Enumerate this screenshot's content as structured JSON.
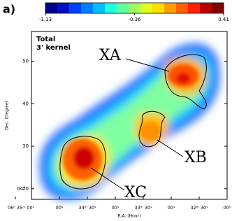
{
  "chart_data": {
    "type": "map",
    "panel_label": "a)",
    "legend_lines": [
      "Total",
      "3' kernel"
    ],
    "annotations": [
      "XA",
      "XB",
      "XC"
    ],
    "x_label": "R.A. (Hour)",
    "y_label": "Dec. (Degree)",
    "y_unit_label": "04°",
    "xtick_labels": [
      "06ʰ 35ᵐ 00ˢ",
      "00ˢ",
      "34ᵐ 30ˢ",
      "00ˢ",
      "33ᵐ 30ˢ",
      "00ˢ",
      "32ᵐ 30ˢ",
      "00ˢ"
    ],
    "ylim": [
      17.5,
      57
    ],
    "yticks": [
      20,
      30,
      40,
      50
    ],
    "clim": [
      -1.13,
      0.41
    ],
    "cticks": [
      -1.13,
      -0.36,
      0.41
    ],
    "colors": [
      "#00008f",
      "#0010c0",
      "#0040ff",
      "#0080ff",
      "#00bfff",
      "#20ffdf",
      "#60ff9f",
      "#a0ff60",
      "#dfff20",
      "#ffdf00",
      "#ff9f00",
      "#ff6000",
      "#ff2000",
      "#bf0000",
      "#800000"
    ]
  }
}
